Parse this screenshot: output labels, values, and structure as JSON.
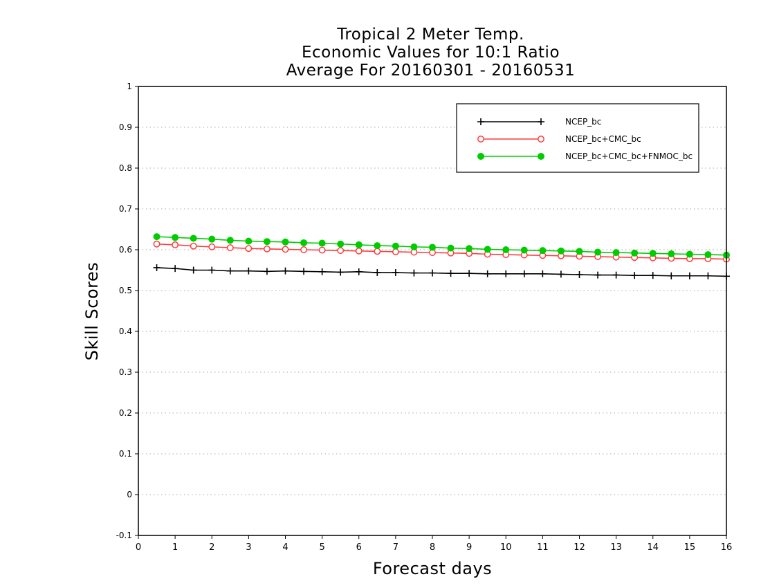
{
  "chart_data": {
    "type": "line",
    "title_lines": [
      "Tropical 2 Meter Temp.",
      "Economic Values for 10:1 Ratio",
      "Average For 20160301 - 20160531"
    ],
    "xlabel": "Forecast days",
    "ylabel": "Skill Scores",
    "xlim": [
      0,
      16
    ],
    "ylim": [
      -0.1,
      1
    ],
    "xticks": [
      "0",
      "1",
      "2",
      "3",
      "4",
      "5",
      "6",
      "7",
      "8",
      "9",
      "10",
      "11",
      "12",
      "13",
      "14",
      "15",
      "16"
    ],
    "yticks": [
      "-0.1",
      "0",
      "0.1",
      "0.2",
      "0.3",
      "0.4",
      "0.5",
      "0.6",
      "0.7",
      "0.8",
      "0.9",
      "1"
    ],
    "grid": "horizontal dotted",
    "legend_position": "top-right",
    "x": [
      0.5,
      1,
      1.5,
      2,
      2.5,
      3,
      3.5,
      4,
      4.5,
      5,
      5.5,
      6,
      6.5,
      7,
      7.5,
      8,
      8.5,
      9,
      9.5,
      10,
      10.5,
      11,
      11.5,
      12,
      12.5,
      13,
      13.5,
      14,
      14.5,
      15,
      15.5,
      16
    ],
    "series": [
      {
        "name": "NCEP_bc",
        "color": "#000000",
        "marker": "plus",
        "values": [
          0.556,
          0.554,
          0.55,
          0.55,
          0.548,
          0.548,
          0.547,
          0.548,
          0.547,
          0.546,
          0.545,
          0.546,
          0.544,
          0.544,
          0.543,
          0.543,
          0.542,
          0.542,
          0.541,
          0.541,
          0.541,
          0.541,
          0.54,
          0.539,
          0.538,
          0.538,
          0.537,
          0.537,
          0.536,
          0.536,
          0.536,
          0.535
        ]
      },
      {
        "name": "NCEP_bc+CMC_bc",
        "color": "#ff3b3b",
        "marker": "open-circle",
        "values": [
          0.614,
          0.612,
          0.609,
          0.607,
          0.605,
          0.603,
          0.602,
          0.601,
          0.6,
          0.599,
          0.598,
          0.597,
          0.596,
          0.595,
          0.594,
          0.593,
          0.592,
          0.591,
          0.589,
          0.588,
          0.587,
          0.586,
          0.585,
          0.584,
          0.583,
          0.582,
          0.581,
          0.58,
          0.579,
          0.578,
          0.578,
          0.577
        ]
      },
      {
        "name": "NCEP_bc+CMC_bc+FNMOC_bc",
        "color": "#00cc00",
        "marker": "filled-circle",
        "values": [
          0.632,
          0.63,
          0.628,
          0.626,
          0.623,
          0.621,
          0.62,
          0.619,
          0.617,
          0.616,
          0.614,
          0.612,
          0.61,
          0.609,
          0.607,
          0.606,
          0.604,
          0.603,
          0.601,
          0.6,
          0.599,
          0.598,
          0.597,
          0.596,
          0.594,
          0.593,
          0.592,
          0.591,
          0.59,
          0.589,
          0.588,
          0.587
        ]
      }
    ]
  }
}
